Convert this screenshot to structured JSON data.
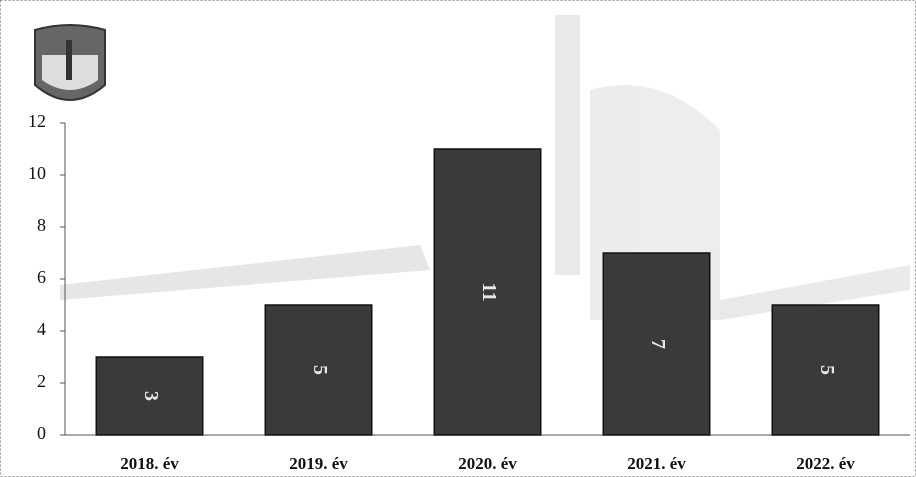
{
  "chart_data": {
    "type": "bar",
    "categories": [
      "2018. év",
      "2019. év",
      "2020. év",
      "2021. év",
      "2022. év"
    ],
    "values": [
      3,
      5,
      11,
      7,
      5
    ],
    "color": "#3a3a3a",
    "ylim": [
      0,
      12
    ],
    "yticks": [
      0,
      2,
      4,
      6,
      8,
      10,
      12
    ],
    "grid": false
  }
}
